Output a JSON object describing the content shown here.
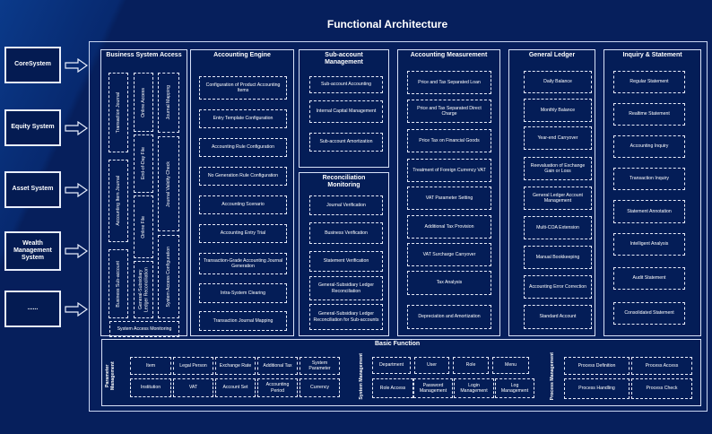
{
  "title": "Functional Architecture",
  "colors": {
    "background": "#061f5c",
    "border": "#e6ecfa",
    "text": "#ffffff"
  },
  "source_systems": [
    "CoreSystem",
    "Equity System",
    "Asset System",
    "Wealth Management System",
    "......"
  ],
  "business_system_access": {
    "title": "Business System Access",
    "items": [
      "Transaction Journal",
      "Accounting Item Journal",
      "Business Sub-account",
      "Online Access",
      "End-of-Day File",
      "Online File",
      "General-Subsidiary Ledger Reconciliation",
      "Journal Mapping",
      "Journal Validity Check",
      "System Access Configuration",
      "System Access Monitoring"
    ]
  },
  "accounting_engine": {
    "title": "Accounting Engine",
    "items": [
      "Configuration of Product Accounting Items",
      "Entry Template Configuration",
      "Accounting Rule Configuration",
      "No Generation Rule Configuration",
      "Accounting Scenario",
      "Accounting Entry Trial",
      "Transaction-Grade Accounting Journal Generation",
      "Intra-System Clearing",
      "Transaction Journal Mapping"
    ]
  },
  "sub_account_management": {
    "title": "Sub-account Management",
    "items": [
      "Sub-account Accounting",
      "Internal Capital Management",
      "Sub-account Amortization"
    ]
  },
  "reconciliation_monitoring": {
    "title": "Reconciliation Monitoring",
    "items": [
      "Journal Verification",
      "Business Verification",
      "Statement Verification",
      "General-Subsidiary Ledger Reconciliation",
      "General-Subsidiary Ledger Reconciliation for Sub-accounts"
    ]
  },
  "accounting_measurement": {
    "title": "Accounting Measurement",
    "items": [
      "Price and Tax Separated Loan",
      "Price and Tax Separated Direct Charge",
      "Price Tax on Financial Goods",
      "Treatment of Foreign Currency VAT",
      "VAT Parameter Setting",
      "Additional Tax Provision",
      "VAT Surcharge Carryover",
      "Tax Analysis",
      "Depreciation and Amortization"
    ]
  },
  "general_ledger": {
    "title": "General Ledger",
    "items": [
      "Daily Balance",
      "Monthly Balance",
      "Year-end Carryover",
      "Reevaluation of Exchange Gain or Loss",
      "General Ledger Account Management",
      "Multi-COA Extension",
      "Manual Bookkeeping",
      "Accounting Error Correction",
      "Standard Account"
    ]
  },
  "inquiry_statement": {
    "title": "Inquiry & Statement",
    "items": [
      "Regular Statement",
      "Realtime Statement",
      "Accounting Inquiry",
      "Transaction Inquiry",
      "Statement Annotation",
      "Intelligent Analysis",
      "Audit Statement",
      "Consolidated Statement"
    ]
  },
  "basic_function": {
    "title": "Basic Function",
    "parameter_management": {
      "label": "Parameter Management",
      "items": [
        "Item",
        "Legal Person",
        "Exchange Rate",
        "Additional Tax",
        "System Parameter",
        "Institution",
        "VAT",
        "Account Set",
        "Accounting Period",
        "Currency"
      ]
    },
    "system_management": {
      "label": "System Management",
      "items": [
        "Department",
        "User",
        "Role",
        "Menu",
        "Role Access",
        "Password Management",
        "Login Management",
        "Log Management"
      ]
    },
    "process_management": {
      "label": "Process Management",
      "items": [
        "Process Definition",
        "Process Access",
        "Process Handling",
        "Process Check"
      ]
    }
  }
}
